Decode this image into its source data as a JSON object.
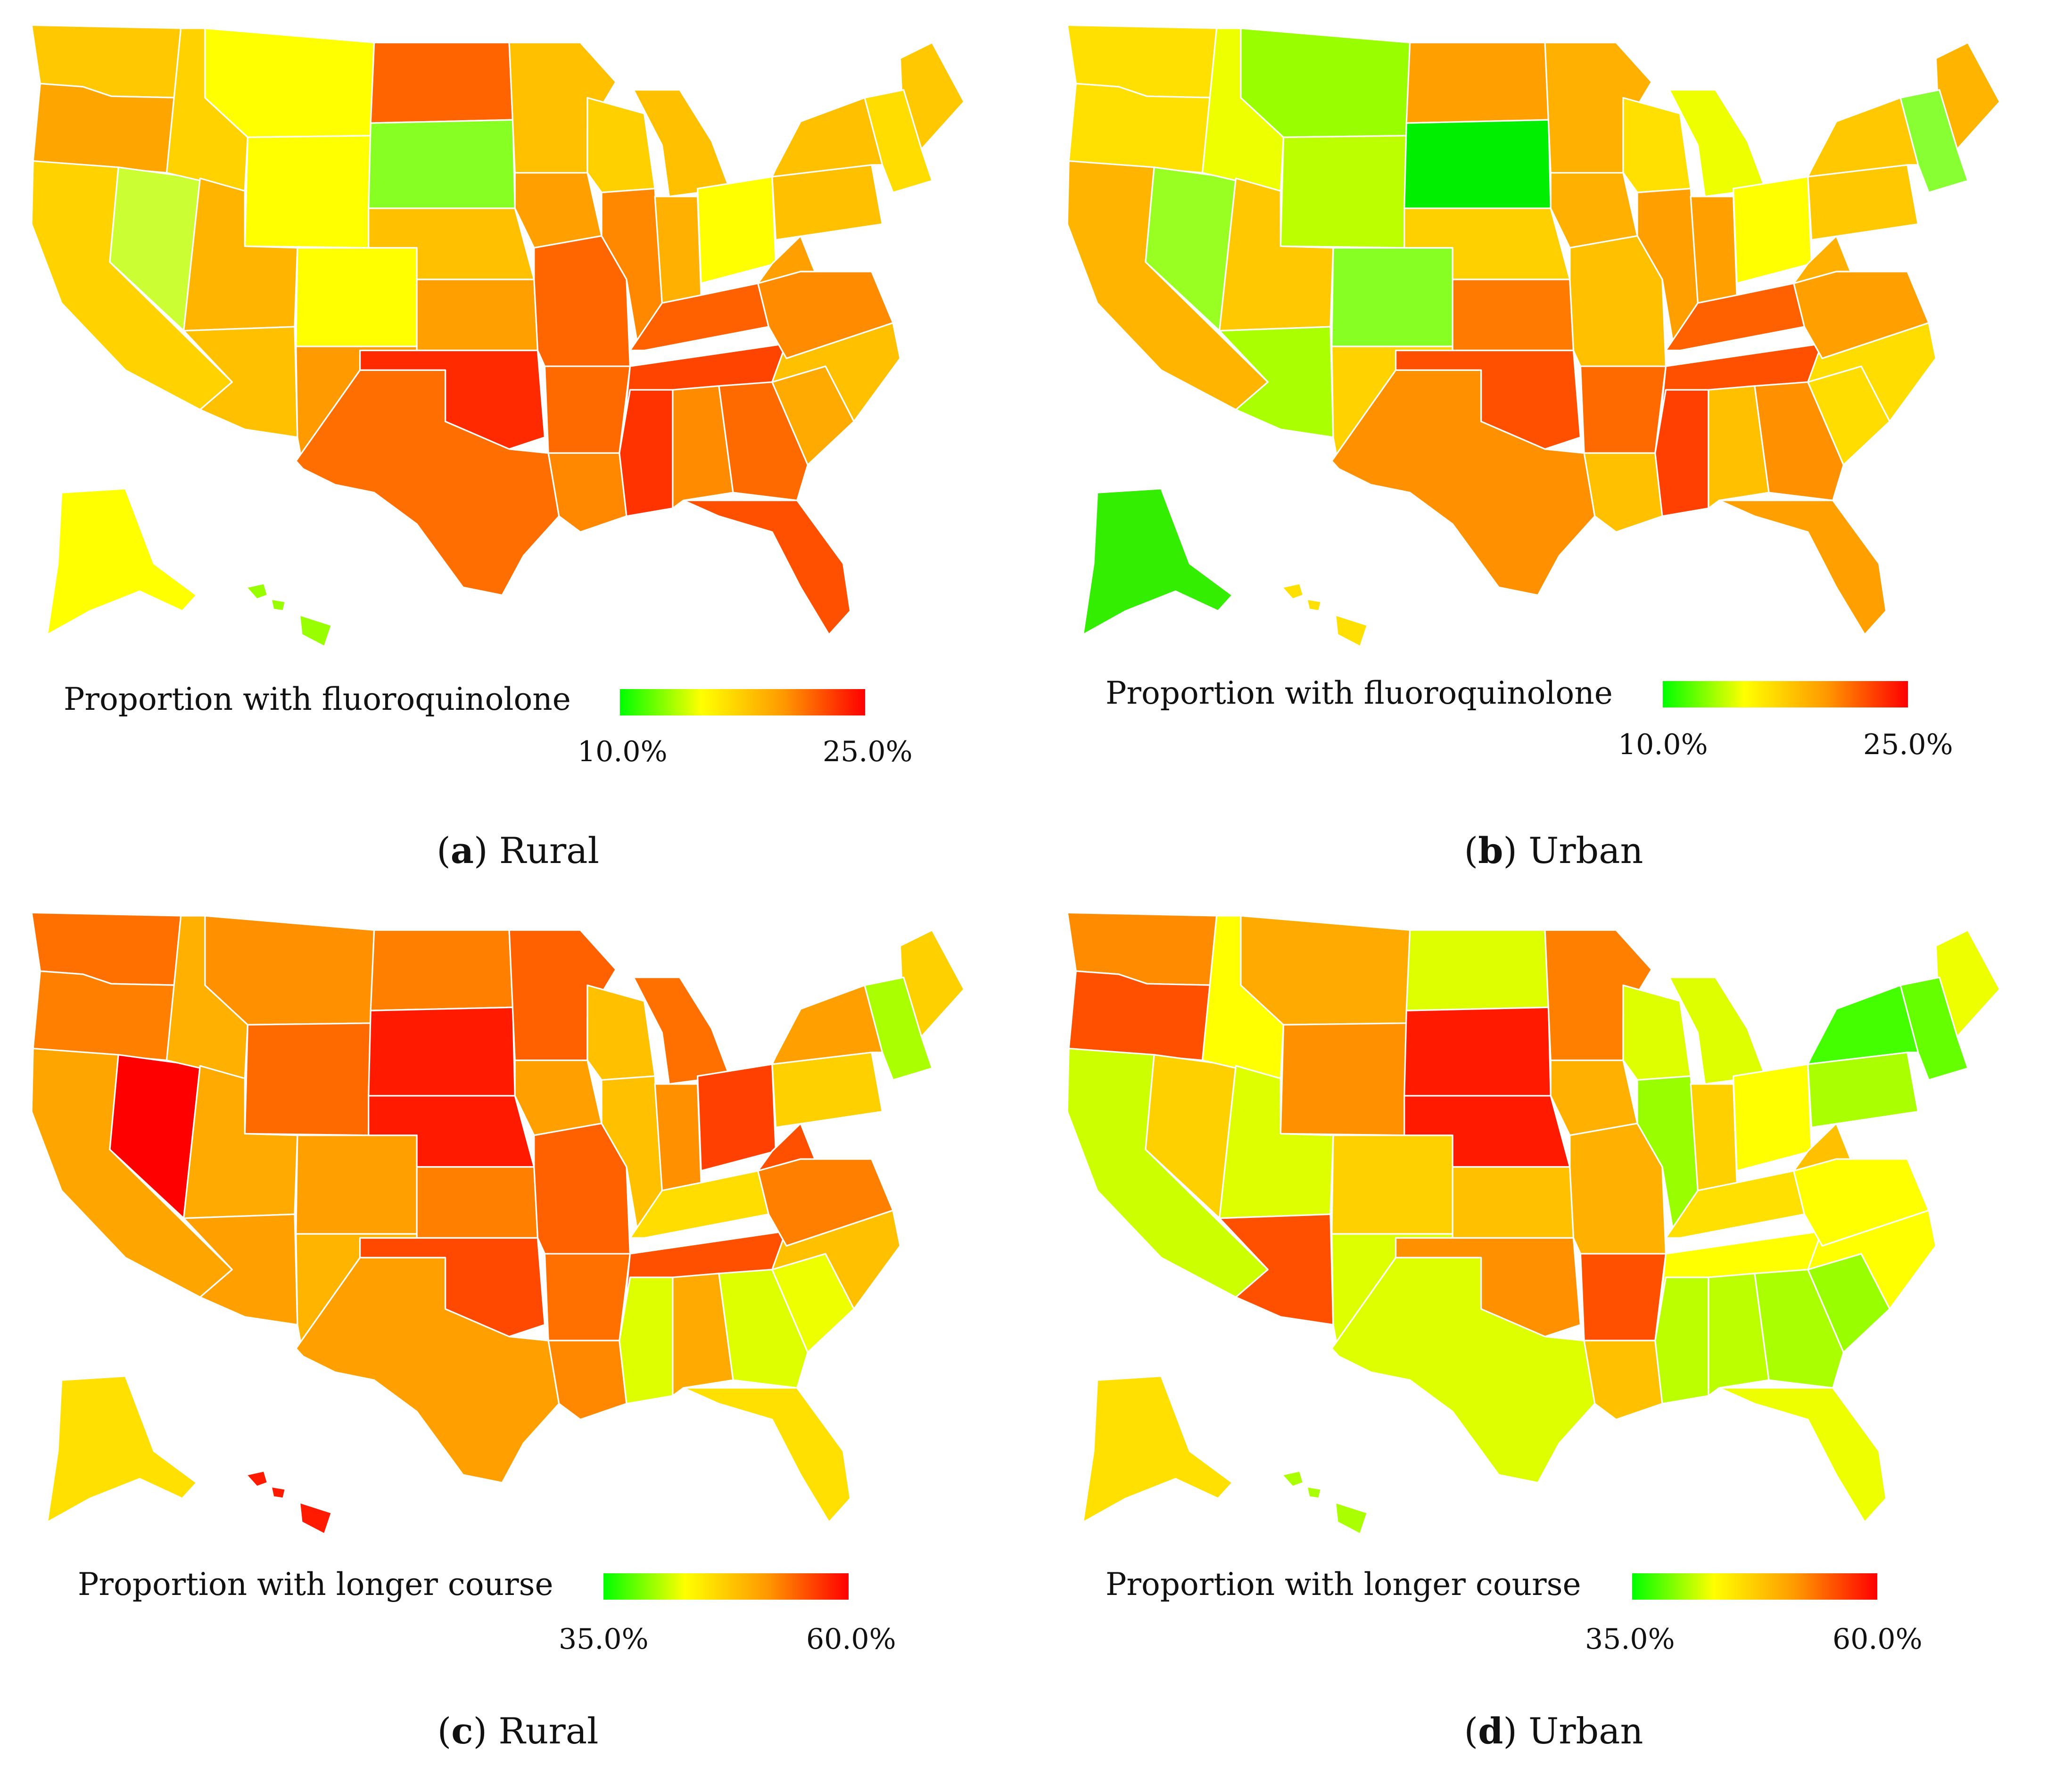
{
  "palette": {
    "green": "#00ff00",
    "yellow": "#ffff00",
    "orange": "#ff9900",
    "red": "#ff0000"
  },
  "panels": [
    {
      "id": "a",
      "letter": "a",
      "caption": "Rural",
      "legend": {
        "title": "Proportion with fluoroquinolone",
        "min_label": "10.0%",
        "max_label": "25.0%",
        "min": 10.0,
        "max": 25.0
      },
      "state_colors": {
        "WA": "#ffc800",
        "OR": "#ffa500",
        "CA": "#ffd200",
        "NV": "#ccff33",
        "ID": "#ffd200",
        "MT": "#ffff00",
        "WY": "#ffff00",
        "UT": "#ffb400",
        "AZ": "#ffc000",
        "CO": "#ffff00",
        "NM": "#ff9a00",
        "ND": "#ff6400",
        "SD": "#88ff22",
        "NE": "#ffc000",
        "KS": "#ffa000",
        "OK": "#ff2a00",
        "TX": "#ff6e00",
        "MN": "#ffc000",
        "IA": "#ffa000",
        "MO": "#ff6600",
        "AR": "#ff6a00",
        "LA": "#ff8800",
        "WI": "#ffd000",
        "IL": "#ff8800",
        "MI": "#ffc000",
        "IN": "#ffb000",
        "OH": "#ffff00",
        "KY": "#ff6000",
        "TN": "#ff4400",
        "MS": "#ff3300",
        "AL": "#ff8c00",
        "GA": "#ff6a00",
        "FL": "#ff5000",
        "SC": "#ffaa00",
        "NC": "#ffc000",
        "VA": "#ff8c00",
        "WV": "#ffa000",
        "PA": "#ffc000",
        "NY": "#ffc000",
        "ME": "#ffc800",
        "NE_states": "#ffdd00",
        "AK": "#ffff00",
        "HI": "#99ff00"
      }
    },
    {
      "id": "b",
      "letter": "b",
      "caption": "Urban",
      "legend": {
        "title": "Proportion with fluoroquinolone",
        "min_label": "10.0%",
        "max_label": "25.0%",
        "min": 10.0,
        "max": 25.0
      },
      "state_colors": {
        "WA": "#ffe000",
        "OR": "#ffe000",
        "CA": "#ffb400",
        "NV": "#99ff22",
        "ID": "#eeff00",
        "MT": "#99ff00",
        "WY": "#bbff00",
        "UT": "#ffc800",
        "AZ": "#aaff00",
        "CO": "#88ff22",
        "NM": "#ffd200",
        "ND": "#ffa000",
        "SD": "#00ee00",
        "NE": "#ffd000",
        "KS": "#ff7a00",
        "OK": "#ff5000",
        "TX": "#ff9000",
        "MN": "#ffb000",
        "IA": "#ffb000",
        "MO": "#ffc000",
        "AR": "#ff6a00",
        "LA": "#ffc000",
        "WI": "#ffe000",
        "IL": "#ffa000",
        "MI": "#eeff00",
        "IN": "#ffa000",
        "OH": "#ffff00",
        "KY": "#ff6000",
        "TN": "#ff5000",
        "MS": "#ff4000",
        "AL": "#ffc000",
        "GA": "#ff9000",
        "FL": "#ffa000",
        "SC": "#ffdd00",
        "NC": "#ffdd00",
        "VA": "#ffa000",
        "WV": "#ffb000",
        "PA": "#ffc800",
        "NY": "#ffc800",
        "ME": "#ffb400",
        "NE_states": "#88ff33",
        "AK": "#33ee00",
        "HI": "#ffe000"
      }
    },
    {
      "id": "c",
      "letter": "c",
      "caption": "Rural",
      "legend": {
        "title": "Proportion with longer course",
        "min_label": "35.0%",
        "max_label": "60.0%",
        "min": 35.0,
        "max": 60.0
      },
      "state_colors": {
        "WA": "#ff7000",
        "OR": "#ff8000",
        "CA": "#ffa500",
        "NV": "#ff0000",
        "ID": "#ffb000",
        "MT": "#ff9000",
        "WY": "#ff6a00",
        "UT": "#ffaa00",
        "AZ": "#ffa000",
        "CO": "#ffa000",
        "NM": "#ffb400",
        "ND": "#ff8000",
        "SD": "#ff1a00",
        "NE": "#ff1a00",
        "KS": "#ff8000",
        "OK": "#ff4800",
        "TX": "#ffa000",
        "MN": "#ff6000",
        "IA": "#ffa000",
        "MO": "#ff6000",
        "AR": "#ff7000",
        "LA": "#ff8800",
        "WI": "#ffc000",
        "IL": "#ffc000",
        "MI": "#ff7000",
        "IN": "#ff9000",
        "OH": "#ff4000",
        "KY": "#ffdd00",
        "TN": "#ff5000",
        "MS": "#ddff00",
        "AL": "#ffaa00",
        "GA": "#ddff00",
        "FL": "#ffe000",
        "SC": "#eeff00",
        "NC": "#ffc000",
        "VA": "#ff8000",
        "WV": "#ff5000",
        "PA": "#ffd000",
        "NY": "#ffa000",
        "ME": "#ffd000",
        "NE_states": "#aaff00",
        "AK": "#ffe000",
        "HI": "#ff1a00"
      }
    },
    {
      "id": "d",
      "letter": "d",
      "caption": "Urban",
      "legend": {
        "title": "Proportion with longer course",
        "min_label": "35.0%",
        "max_label": "60.0%",
        "min": 35.0,
        "max": 60.0
      },
      "state_colors": {
        "WA": "#ff8c00",
        "OR": "#ff5000",
        "CA": "#ccff00",
        "NV": "#ffd000",
        "ID": "#ffff00",
        "MT": "#ffaa00",
        "WY": "#ff9000",
        "UT": "#ddff00",
        "AZ": "#ff5000",
        "CO": "#ffd000",
        "NM": "#ddff00",
        "ND": "#ddff00",
        "SD": "#ff1a00",
        "NE": "#ff1a00",
        "KS": "#ffc000",
        "OK": "#ff9000",
        "TX": "#ddff00",
        "MN": "#ff8000",
        "IA": "#ffb000",
        "MO": "#ffb000",
        "AR": "#ff5000",
        "LA": "#ffc000",
        "WI": "#ddff00",
        "IL": "#99ff00",
        "MI": "#ddff00",
        "IN": "#ffd000",
        "OH": "#ffff00",
        "KY": "#ffe000",
        "TN": "#ffff00",
        "MS": "#bbff00",
        "AL": "#bbff00",
        "GA": "#aaff00",
        "FL": "#eeff00",
        "SC": "#99ff00",
        "NC": "#ffff00",
        "VA": "#ffff00",
        "WV": "#ffc000",
        "PA": "#aaff00",
        "NY": "#44ff00",
        "ME": "#eeff00",
        "NE_states": "#66ff00",
        "AK": "#ffe000",
        "HI": "#aaff00"
      }
    }
  ]
}
